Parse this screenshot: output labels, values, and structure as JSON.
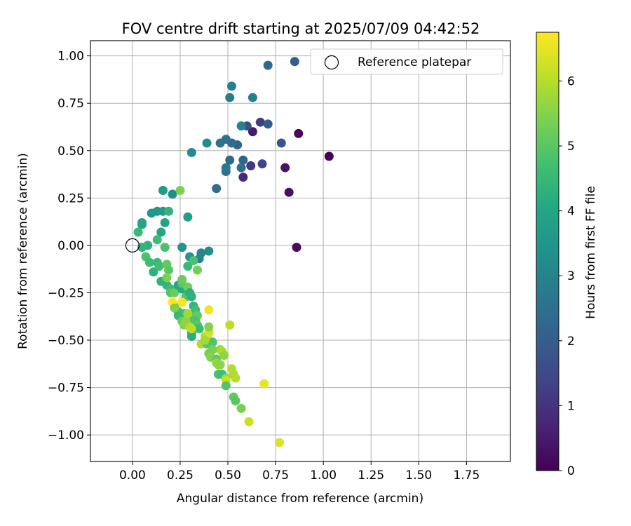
{
  "chart_data": {
    "type": "scatter",
    "title": "FOV centre drift starting at 2025/07/09 04:42:52",
    "xlabel": "Angular distance from reference (arcmin)",
    "ylabel": "Rotation from reference (arcmin)",
    "xlim": [
      -0.22,
      1.98
    ],
    "ylim": [
      -1.14,
      1.08
    ],
    "xticks": [
      0.0,
      0.25,
      0.5,
      0.75,
      1.0,
      1.25,
      1.5,
      1.75
    ],
    "xtick_labels": [
      "0.00",
      "0.25",
      "0.50",
      "0.75",
      "1.00",
      "1.25",
      "1.50",
      "1.75"
    ],
    "yticks": [
      -1.0,
      -0.75,
      -0.5,
      -0.25,
      0.0,
      0.25,
      0.5,
      0.75,
      1.0
    ],
    "ytick_labels": [
      "−1.00",
      "−0.75",
      "−0.50",
      "−0.25",
      "0.00",
      "0.25",
      "0.50",
      "0.75",
      "1.00"
    ],
    "grid": true,
    "legend": {
      "position": "upper-right",
      "label": "Reference platepar"
    },
    "reference_point": {
      "x": 0.0,
      "y": 0.0
    },
    "colorbar": {
      "label": "Hours from first FF file",
      "colormap": "viridis",
      "range": [
        0,
        6.75
      ],
      "ticks": [
        0,
        1,
        2,
        3,
        4,
        5,
        6
      ],
      "tick_labels": [
        "0",
        "1",
        "2",
        "3",
        "4",
        "5",
        "6"
      ]
    },
    "points": [
      [
        1.03,
        0.47,
        0.05
      ],
      [
        0.87,
        0.59,
        0.15
      ],
      [
        0.86,
        -0.01,
        0.2
      ],
      [
        0.82,
        0.28,
        0.3
      ],
      [
        0.8,
        0.41,
        0.35
      ],
      [
        0.63,
        0.6,
        0.5
      ],
      [
        0.58,
        0.36,
        0.8
      ],
      [
        0.62,
        0.42,
        1.1
      ],
      [
        0.67,
        0.65,
        1.2
      ],
      [
        0.68,
        0.43,
        1.4
      ],
      [
        0.6,
        0.63,
        1.6
      ],
      [
        0.78,
        0.54,
        1.8
      ],
      [
        0.71,
        0.64,
        1.9
      ],
      [
        0.85,
        0.97,
        2.0
      ],
      [
        0.71,
        0.95,
        2.3
      ],
      [
        0.55,
        0.53,
        2.1
      ],
      [
        0.58,
        0.45,
        2.2
      ],
      [
        0.57,
        0.41,
        2.4
      ],
      [
        0.51,
        0.45,
        2.3
      ],
      [
        0.52,
        0.54,
        2.4
      ],
      [
        0.46,
        0.54,
        2.5
      ],
      [
        0.49,
        0.56,
        2.6
      ],
      [
        0.49,
        0.39,
        2.5
      ],
      [
        0.49,
        0.41,
        2.7
      ],
      [
        0.44,
        0.3,
        2.4
      ],
      [
        0.51,
        0.78,
        2.8
      ],
      [
        0.52,
        0.84,
        2.9
      ],
      [
        0.63,
        0.78,
        2.9
      ],
      [
        0.57,
        0.63,
        3.0
      ],
      [
        0.39,
        0.54,
        3.2
      ],
      [
        0.31,
        0.49,
        3.2
      ],
      [
        0.21,
        0.27,
        3.3
      ],
      [
        0.4,
        -0.03,
        3.3
      ],
      [
        0.35,
        -0.07,
        3.0
      ],
      [
        0.36,
        -0.04,
        3.1
      ],
      [
        0.26,
        -0.01,
        3.5
      ],
      [
        0.3,
        -0.06,
        3.4
      ],
      [
        0.16,
        0.29,
        3.7
      ],
      [
        0.29,
        0.15,
        3.8
      ],
      [
        0.1,
        0.17,
        3.6
      ],
      [
        0.13,
        0.18,
        3.6
      ],
      [
        0.16,
        0.18,
        3.7
      ],
      [
        0.05,
        0.12,
        3.9
      ],
      [
        0.05,
        0.11,
        4.0
      ],
      [
        0.17,
        0.12,
        3.9
      ],
      [
        0.15,
        0.07,
        4.0
      ],
      [
        0.19,
        0.18,
        4.4
      ],
      [
        0.08,
        0.0,
        4.3
      ],
      [
        0.13,
        0.03,
        4.6
      ],
      [
        0.17,
        -0.01,
        4.8
      ],
      [
        0.05,
        -0.01,
        4.4
      ],
      [
        0.03,
        0.07,
        4.5
      ],
      [
        0.25,
        0.29,
        5.4
      ],
      [
        0.29,
        -0.11,
        4.5
      ],
      [
        0.32,
        -0.08,
        4.8
      ],
      [
        0.34,
        -0.13,
        5.3
      ],
      [
        0.07,
        -0.06,
        4.8
      ],
      [
        0.09,
        -0.09,
        4.6
      ],
      [
        0.11,
        -0.14,
        4.3
      ],
      [
        0.13,
        -0.09,
        4.5
      ],
      [
        0.14,
        -0.11,
        4.7
      ],
      [
        0.18,
        -0.1,
        5.1
      ],
      [
        0.19,
        -0.13,
        5.0
      ],
      [
        0.15,
        -0.19,
        4.3
      ],
      [
        0.18,
        -0.21,
        4.4
      ],
      [
        0.2,
        -0.23,
        4.6
      ],
      [
        0.18,
        -0.17,
        5.4
      ],
      [
        0.2,
        -0.25,
        4.9
      ],
      [
        0.22,
        -0.25,
        5.2
      ],
      [
        0.22,
        -0.32,
        4.9
      ],
      [
        0.24,
        -0.21,
        4.0
      ],
      [
        0.26,
        -0.23,
        4.1
      ],
      [
        0.26,
        -0.2,
        5.0
      ],
      [
        0.29,
        -0.22,
        5.3
      ],
      [
        0.26,
        -0.18,
        5.2
      ],
      [
        0.28,
        -0.27,
        4.9
      ],
      [
        0.3,
        -0.25,
        4.2
      ],
      [
        0.31,
        -0.27,
        4.3
      ],
      [
        0.32,
        -0.32,
        4.4
      ],
      [
        0.33,
        -0.34,
        4.7
      ],
      [
        0.31,
        -0.38,
        5.0
      ],
      [
        0.34,
        -0.37,
        5.1
      ],
      [
        0.33,
        -0.4,
        4.8
      ],
      [
        0.34,
        -0.42,
        5.0
      ],
      [
        0.35,
        -0.44,
        4.6
      ],
      [
        0.31,
        -0.46,
        4.3
      ],
      [
        0.31,
        -0.48,
        4.2
      ],
      [
        0.32,
        -0.44,
        4.5
      ],
      [
        0.3,
        -0.39,
        4.9
      ],
      [
        0.27,
        -0.36,
        4.7
      ],
      [
        0.24,
        -0.35,
        4.7
      ],
      [
        0.24,
        -0.37,
        4.5
      ],
      [
        0.26,
        -0.4,
        5.2
      ],
      [
        0.27,
        -0.42,
        5.5
      ],
      [
        0.28,
        -0.4,
        5.6
      ],
      [
        0.21,
        -0.3,
        6.7
      ],
      [
        0.26,
        -0.3,
        6.7
      ],
      [
        0.22,
        -0.33,
        5.4
      ],
      [
        0.29,
        -0.36,
        5.8
      ],
      [
        0.3,
        -0.43,
        5.9
      ],
      [
        0.31,
        -0.44,
        6.1
      ],
      [
        0.36,
        -0.52,
        5.9
      ],
      [
        0.38,
        -0.48,
        6.0
      ],
      [
        0.4,
        -0.46,
        6.3
      ],
      [
        0.4,
        -0.5,
        6.4
      ],
      [
        0.4,
        -0.34,
        6.6
      ],
      [
        0.39,
        -0.52,
        5.0
      ],
      [
        0.42,
        -0.51,
        4.9
      ],
      [
        0.4,
        -0.57,
        5.3
      ],
      [
        0.41,
        -0.59,
        5.5
      ],
      [
        0.4,
        -0.43,
        5.5
      ],
      [
        0.44,
        -0.6,
        5.1
      ],
      [
        0.44,
        -0.62,
        5.7
      ],
      [
        0.45,
        -0.63,
        5.6
      ],
      [
        0.45,
        -0.68,
        4.8
      ],
      [
        0.47,
        -0.68,
        4.6
      ],
      [
        0.46,
        -0.55,
        5.8
      ],
      [
        0.47,
        -0.56,
        5.9
      ],
      [
        0.48,
        -0.58,
        5.6
      ],
      [
        0.49,
        -0.7,
        5.6
      ],
      [
        0.49,
        -0.71,
        6.2
      ],
      [
        0.49,
        -0.74,
        4.9
      ],
      [
        0.51,
        -0.42,
        6.1
      ],
      [
        0.52,
        -0.65,
        6.0
      ],
      [
        0.53,
        -0.68,
        5.9
      ],
      [
        0.53,
        -0.8,
        5.1
      ],
      [
        0.54,
        -0.82,
        5.0
      ],
      [
        0.54,
        -0.7,
        6.0
      ],
      [
        0.57,
        -0.86,
        5.4
      ],
      [
        0.61,
        -0.93,
        6.2
      ],
      [
        0.69,
        -0.73,
        6.5
      ],
      [
        0.77,
        -1.04,
        6.4
      ],
      [
        0.42,
        -0.55,
        5.4
      ],
      [
        0.46,
        -0.63,
        5.6
      ],
      [
        0.38,
        -0.5,
        5.8
      ]
    ]
  }
}
